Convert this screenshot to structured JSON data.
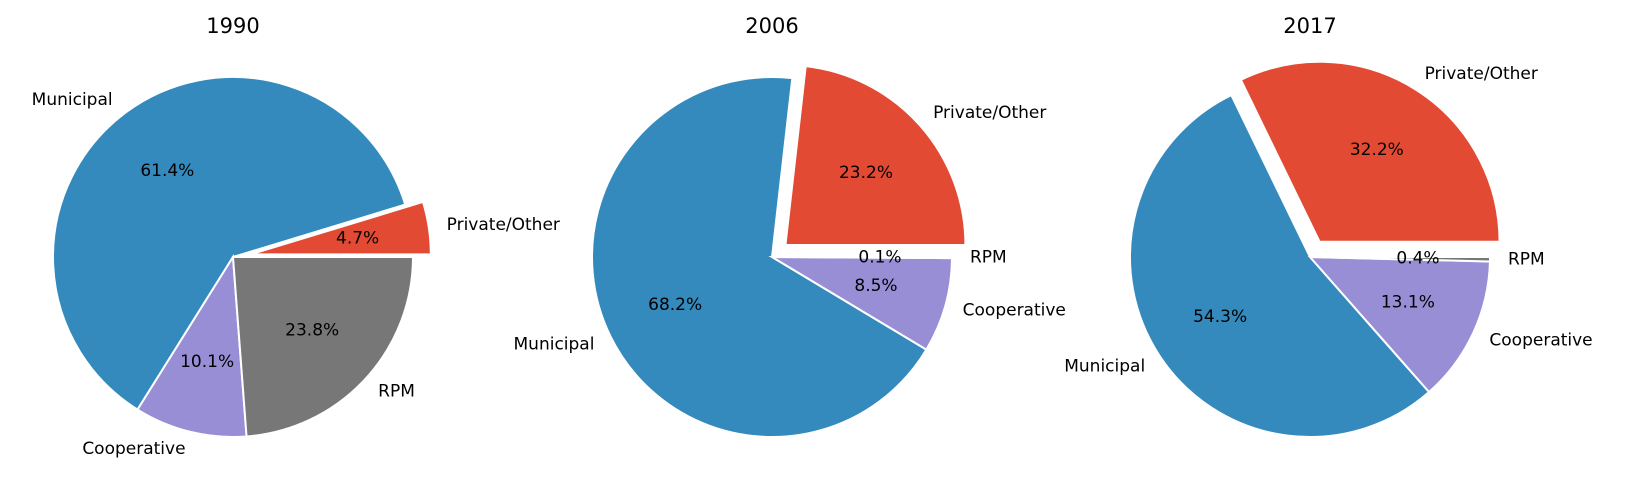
{
  "chart_data": [
    {
      "type": "pie",
      "title": "1990",
      "slices": [
        {
          "label": "Private/Other",
          "value": 4.7,
          "pct_label": "4.7%",
          "color": "#e24a33",
          "explode": true
        },
        {
          "label": "Municipal",
          "value": 61.4,
          "pct_label": "61.4%",
          "color": "#348abd",
          "explode": false
        },
        {
          "label": "Cooperative",
          "value": 10.1,
          "pct_label": "10.1%",
          "color": "#988ed5",
          "explode": false
        },
        {
          "label": "RPM",
          "value": 23.8,
          "pct_label": "23.8%",
          "color": "#777777",
          "explode": false
        }
      ]
    },
    {
      "type": "pie",
      "title": "2006",
      "slices": [
        {
          "label": "Private/Other",
          "value": 23.2,
          "pct_label": "23.2%",
          "color": "#e24a33",
          "explode": true
        },
        {
          "label": "Municipal",
          "value": 68.2,
          "pct_label": "68.2%",
          "color": "#348abd",
          "explode": false
        },
        {
          "label": "Cooperative",
          "value": 8.5,
          "pct_label": "8.5%",
          "color": "#988ed5",
          "explode": false
        },
        {
          "label": "RPM",
          "value": 0.1,
          "pct_label": "0.1%",
          "color": "#777777",
          "explode": false
        }
      ]
    },
    {
      "type": "pie",
      "title": "2017",
      "slices": [
        {
          "label": "Private/Other",
          "value": 32.2,
          "pct_label": "32.2%",
          "color": "#e24a33",
          "explode": true
        },
        {
          "label": "Municipal",
          "value": 54.3,
          "pct_label": "54.3%",
          "color": "#348abd",
          "explode": false
        },
        {
          "label": "Cooperative",
          "value": 13.1,
          "pct_label": "13.1%",
          "color": "#988ed5",
          "explode": false
        },
        {
          "label": "RPM",
          "value": 0.4,
          "pct_label": "0.4%",
          "color": "#777777",
          "explode": false
        }
      ]
    }
  ]
}
